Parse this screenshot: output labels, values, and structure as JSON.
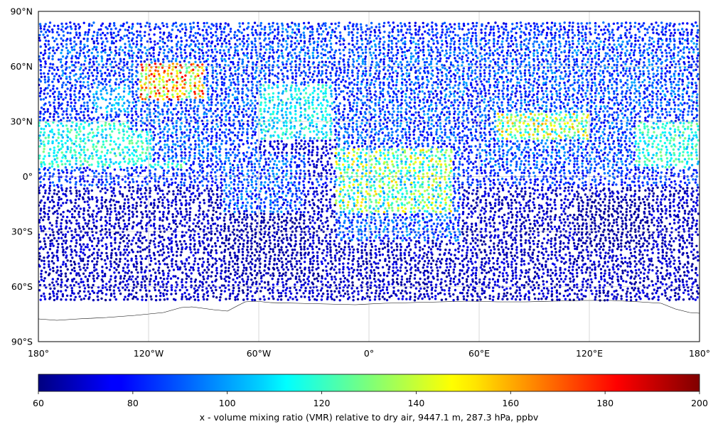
{
  "map": {
    "projection": "plate carree",
    "lon_range": [
      -180,
      180
    ],
    "lat_range": [
      -90,
      90
    ],
    "gridlines": true,
    "lat_ticks": [
      {
        "value": 90,
        "label": "90°N"
      },
      {
        "value": 60,
        "label": "60°N"
      },
      {
        "value": 30,
        "label": "30°N"
      },
      {
        "value": 0,
        "label": "0°"
      },
      {
        "value": -30,
        "label": "30°S"
      },
      {
        "value": -60,
        "label": "60°S"
      },
      {
        "value": -90,
        "label": "90°S"
      }
    ],
    "lon_ticks": [
      {
        "value": -180,
        "label": "180°"
      },
      {
        "value": -120,
        "label": "120°W"
      },
      {
        "value": -60,
        "label": "60°W"
      },
      {
        "value": 0,
        "label": "0°"
      },
      {
        "value": 60,
        "label": "60°E"
      },
      {
        "value": 120,
        "label": "120°E"
      },
      {
        "value": 180,
        "label": "180°"
      }
    ],
    "coverage_lat_range": [
      -67,
      84
    ],
    "colors": {
      "ocean_bg": "#ffffff",
      "coastline": "#000000",
      "grid": "#b0b0b0"
    }
  },
  "colorbar": {
    "colormap": "jet",
    "min": 60,
    "max": 200,
    "ticks": [
      60,
      80,
      100,
      120,
      140,
      160,
      180,
      200
    ],
    "label": "x - volume mixing ratio (VMR) relative to dry air, 9447.1 m, 287.3 hPa, ppbv"
  }
}
